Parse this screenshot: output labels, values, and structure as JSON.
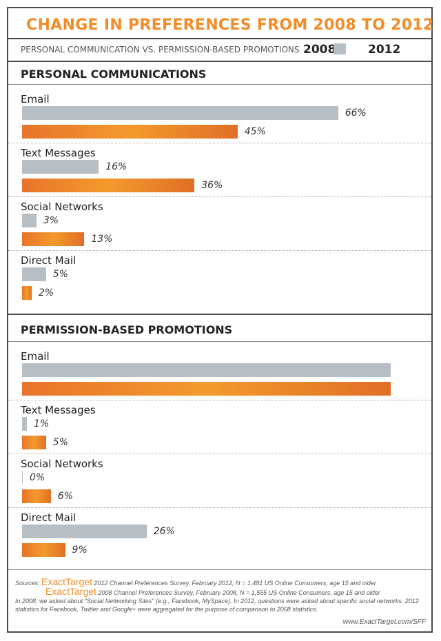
{
  "title": "CHANGE IN PREFERENCES FROM 2008 TO 2012",
  "subtitle": "PERSONAL COMMUNICATION VS. PERMISSION-BASED PROMOTIONS",
  "legend": {
    "y2008": "2008",
    "y2012": "2012"
  },
  "colors": {
    "y2008": "#b7bec4",
    "y2012": "#f28c28",
    "title": "#f28c28"
  },
  "chart_data": [
    {
      "type": "bar",
      "title": "PERSONAL COMMUNICATIONS",
      "categories": [
        "Email",
        "Text Messages",
        "Social Networks",
        "Direct Mail"
      ],
      "series": [
        {
          "name": "2008",
          "values": [
            66,
            16,
            3,
            5
          ],
          "labels": [
            "66%",
            "16%",
            "3%",
            "5%"
          ]
        },
        {
          "name": "2012",
          "values": [
            45,
            36,
            13,
            2
          ],
          "labels": [
            "45%",
            "36%",
            "13%",
            "2%"
          ]
        }
      ],
      "unit": "%"
    },
    {
      "type": "bar",
      "title": "PERMISSION-BASED PROMOTIONS",
      "categories": [
        "Email",
        "Text Messages",
        "Social Networks",
        "Direct Mail"
      ],
      "series": [
        {
          "name": "2008",
          "values": [
            77,
            1,
            0,
            26
          ],
          "labels": [
            "",
            "1%",
            "0%",
            "26%"
          ]
        },
        {
          "name": "2012",
          "values": [
            77,
            5,
            6,
            9
          ],
          "labels": [
            "",
            "5%",
            "6%",
            "9%"
          ]
        }
      ],
      "unit": "%"
    }
  ],
  "footer": {
    "sources_label": "Sources:",
    "brand": "ExactTarget",
    "line1": "2012 Channel Preferences Survey, February 2012, N = 1,481  US Online Consumers, age 15 and older",
    "line2": "2008 Channel Preferences Survey, February 2008, N = 1,555  US Online Consumers, age 15 and older",
    "note": "In 2008, we asked about \"Social Networking Sites\" (e.g., Facebook, MySpace). In 2012, questions were asked about specific social networks. 2012 statistics for Facebook, Twitter and Google+ were aggregated for the purpose of comparison to 2008 statistics.",
    "url": "www.ExactTarget.com/SFF"
  }
}
